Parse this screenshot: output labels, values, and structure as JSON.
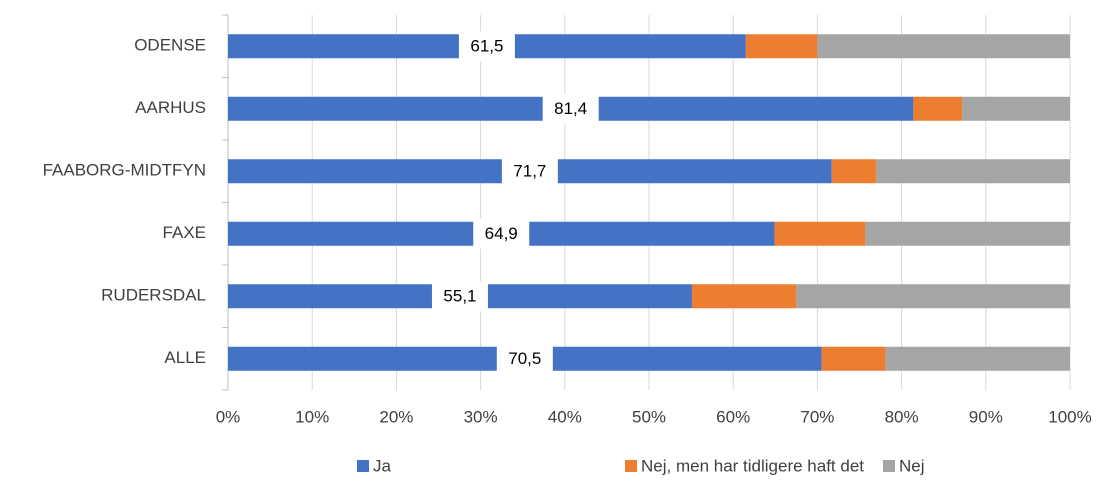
{
  "chart_data": {
    "type": "stacked-bar-horizontal",
    "categories": [
      "ODENSE",
      "AARHUS",
      "FAABORG-MIDTFYN",
      "FAXE",
      "RUDERSDAL",
      "ALLE"
    ],
    "series": [
      {
        "name": "Ja",
        "color": "#4472c4",
        "values": [
          61.5,
          81.4,
          71.7,
          64.9,
          55.1,
          70.5
        ],
        "value_labels": [
          "61,5",
          "81,4",
          "71,7",
          "64,9",
          "55,1",
          "70,5"
        ]
      },
      {
        "name": "Nej, men har tidligere haft det",
        "color": "#ed7d31",
        "values": [
          8.5,
          5.8,
          5.3,
          10.8,
          12.4,
          7.6
        ]
      },
      {
        "name": "Nej",
        "color": "#a5a5a5",
        "values": [
          30,
          12.8,
          23,
          24.3,
          32.5,
          21.9
        ]
      }
    ],
    "xlim": [
      0,
      100
    ],
    "xticks": [
      {
        "value": 0,
        "label": "0%"
      },
      {
        "value": 10,
        "label": "10%"
      },
      {
        "value": 20,
        "label": "20%"
      },
      {
        "value": 30,
        "label": "30%"
      },
      {
        "value": 40,
        "label": "40%"
      },
      {
        "value": 50,
        "label": "50%"
      },
      {
        "value": 60,
        "label": "60%"
      },
      {
        "value": 70,
        "label": "70%"
      },
      {
        "value": 80,
        "label": "80%"
      },
      {
        "value": 90,
        "label": "90%"
      },
      {
        "value": 100,
        "label": "100%"
      }
    ],
    "grid": true,
    "legend": "bottom"
  }
}
